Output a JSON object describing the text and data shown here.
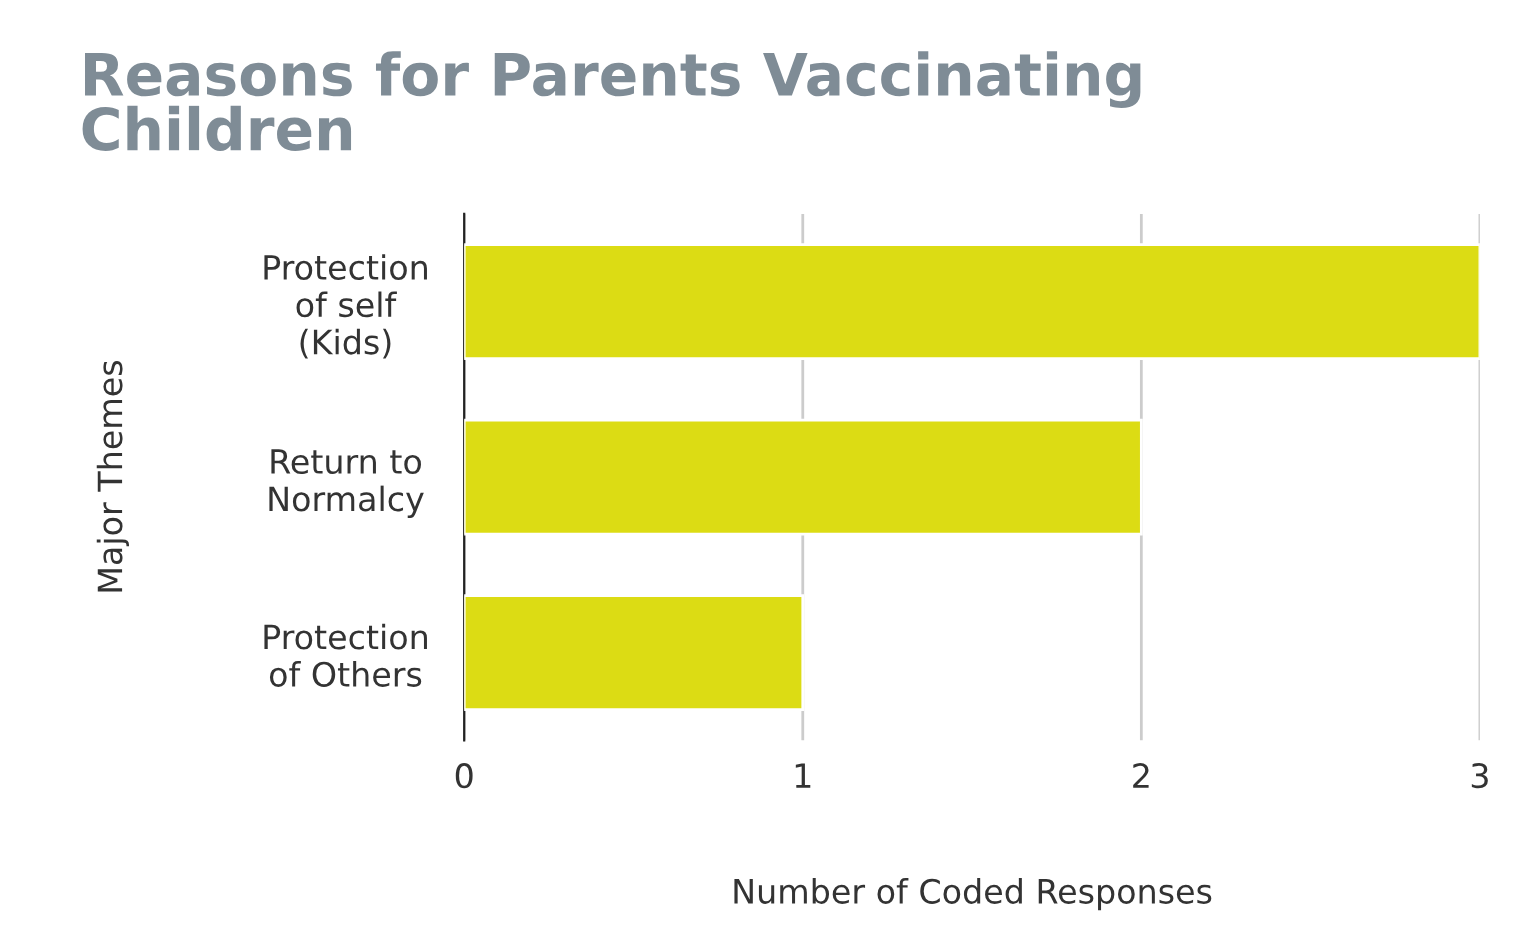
{
  "chart_data": {
    "type": "bar",
    "orientation": "horizontal",
    "title": "Reasons for Parents Vaccinating\nChildren",
    "xlabel": "Number of Coded Responses",
    "ylabel": "Major Themes",
    "categories": [
      "Protection\nof self\n(Kids)",
      "Return to\nNormalcy",
      "Protection\nof Others"
    ],
    "values": [
      3,
      2,
      1
    ],
    "color": "#dcdc14",
    "xlim": [
      0,
      3
    ],
    "xticks": [
      0,
      1,
      2,
      3
    ],
    "grid": "x"
  }
}
